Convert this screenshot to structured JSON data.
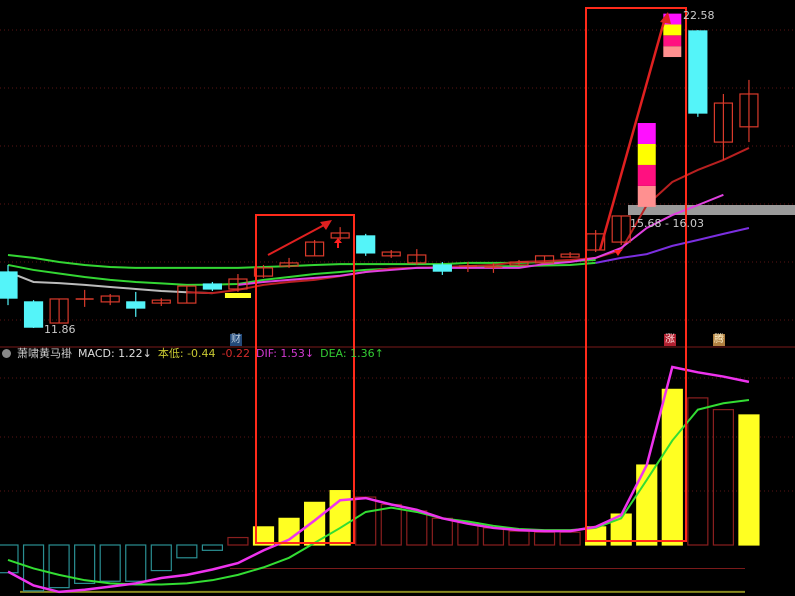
{
  "indicator_header": {
    "name": "萧啸黄马褂",
    "macd": "MACD: 1.22↓",
    "low_label": "本低: -0.44",
    "low2": "-0.22",
    "dif": "DIF: 1.53↓",
    "dea": "DEA: 1.36↑"
  },
  "annotations": {
    "high_price": "22.58",
    "low_price": "11.86",
    "range_label": "15.68 - 16.03",
    "marker_cai": "财",
    "marker_zhang": "涨",
    "marker_teng": "腾"
  },
  "colors": {
    "up": "#d93a2b",
    "down": "#54f4f9",
    "ma1": "#33d633",
    "ma2": "#33d633",
    "ma3": "#bbbbbb",
    "ma_red": "#b82020",
    "ma_magenta": "#e040e0",
    "ma_purple": "#7b2fe0",
    "dif": "#ee33ee",
    "dea": "#33dd33",
    "macd_fill": "#ffff22",
    "macd_hollow": "#8a1f1f",
    "macd_neg": "#2a8f93",
    "box": "#ff2a1a"
  },
  "chart_data": [
    {
      "type": "candlestick",
      "ylim": [
        11.86,
        22.58
      ],
      "candles": [
        {
          "o": 13.77,
          "c": 12.88,
          "h": 14.01,
          "l": 12.64
        },
        {
          "o": 12.75,
          "c": 11.89,
          "h": 12.81,
          "l": 11.86
        },
        {
          "o": 12.03,
          "c": 12.85,
          "h": 12.85,
          "l": 12.03
        },
        {
          "o": 12.85,
          "c": 12.85,
          "h": 13.16,
          "l": 12.58
        },
        {
          "o": 12.75,
          "c": 12.95,
          "h": 13.02,
          "l": 12.64
        },
        {
          "o": 12.75,
          "c": 12.54,
          "h": 13.09,
          "l": 12.24
        },
        {
          "o": 12.71,
          "c": 12.81,
          "h": 12.88,
          "l": 12.61
        },
        {
          "o": 12.71,
          "c": 13.29,
          "h": 13.29,
          "l": 12.71
        },
        {
          "o": 13.36,
          "c": 13.19,
          "h": 13.43,
          "l": 13.12
        },
        {
          "o": 13.19,
          "c": 13.53,
          "h": 13.7,
          "l": 13.09
        },
        {
          "o": 13.63,
          "c": 13.91,
          "h": 14.01,
          "l": 13.57
        },
        {
          "o": 13.97,
          "c": 14.08,
          "h": 14.25,
          "l": 13.91
        },
        {
          "o": 14.32,
          "c": 14.79,
          "h": 14.86,
          "l": 14.32
        },
        {
          "o": 14.93,
          "c": 15.1,
          "h": 15.3,
          "l": 14.86
        },
        {
          "o": 15.0,
          "c": 14.42,
          "h": 15.07,
          "l": 14.32
        },
        {
          "o": 14.32,
          "c": 14.45,
          "h": 14.52,
          "l": 14.25
        },
        {
          "o": 14.08,
          "c": 14.35,
          "h": 14.55,
          "l": 14.01
        },
        {
          "o": 14.01,
          "c": 13.8,
          "h": 14.11,
          "l": 13.67
        },
        {
          "o": 13.97,
          "c": 13.97,
          "h": 14.11,
          "l": 13.77
        },
        {
          "o": 13.94,
          "c": 13.94,
          "h": 14.08,
          "l": 13.74
        },
        {
          "o": 14.01,
          "c": 14.11,
          "h": 14.18,
          "l": 13.97
        },
        {
          "o": 14.08,
          "c": 14.32,
          "h": 14.32,
          "l": 14.08
        },
        {
          "o": 14.28,
          "c": 14.38,
          "h": 14.45,
          "l": 14.25
        },
        {
          "o": 14.52,
          "c": 15.07,
          "h": 15.2,
          "l": 14.45
        },
        {
          "o": 14.79,
          "c": 15.68,
          "h": 15.68,
          "l": 14.69
        },
        {
          "o": 15.99,
          "c": 18.85,
          "h": 18.85,
          "l": 15.99,
          "limit_up": true
        },
        {
          "o": 21.1,
          "c": 22.58,
          "h": 22.58,
          "l": 21.1,
          "limit_up": true
        },
        {
          "o": 21.99,
          "c": 19.19,
          "h": 22.02,
          "l": 19.06
        },
        {
          "o": 18.2,
          "c": 19.53,
          "h": 19.84,
          "l": 17.59
        },
        {
          "o": 18.72,
          "c": 19.84,
          "h": 20.32,
          "l": 18.2
        }
      ],
      "moving_averages": [
        {
          "key": "ma1",
          "start": 0,
          "values": [
            14.35,
            14.25,
            14.11,
            14.01,
            13.94,
            13.91,
            13.91,
            13.91,
            13.91,
            13.91,
            13.94,
            13.97,
            14.01,
            14.04,
            14.04,
            14.04,
            14.04,
            14.04,
            14.08,
            14.08,
            14.08,
            14.11,
            14.14,
            14.18
          ]
        },
        {
          "key": "ma2",
          "start": 0,
          "values": [
            14.01,
            13.84,
            13.72,
            13.6,
            13.5,
            13.43,
            13.38,
            13.33,
            13.34,
            13.36,
            13.5,
            13.6,
            13.7,
            13.77,
            13.84,
            13.88,
            13.91,
            13.93,
            13.94,
            13.96,
            13.97,
            13.99,
            14.01,
            14.08
          ]
        },
        {
          "key": "ma3",
          "start": 0,
          "values": [
            13.77,
            13.43,
            13.39,
            13.33,
            13.26,
            13.19,
            13.12,
            13.08,
            13.05
          ]
        },
        {
          "key": "ma_red",
          "start": 7,
          "values": [
            13.08,
            13.05,
            13.16,
            13.33,
            13.43,
            13.5,
            13.63,
            13.77,
            13.89,
            13.91,
            13.94,
            13.97,
            14.01,
            14.11,
            14.14,
            14.18,
            14.25,
            14.52,
            16.05,
            16.84,
            17.25,
            17.59,
            18.0
          ]
        },
        {
          "key": "ma_magenta",
          "start": 9,
          "values": [
            13.33,
            13.43,
            13.5,
            13.57,
            13.64,
            13.77,
            13.84,
            13.91,
            13.91,
            13.91,
            13.91,
            13.91,
            14.04,
            14.11,
            14.25,
            14.59,
            15.27,
            15.71,
            16.05,
            16.4
          ]
        },
        {
          "key": "ma_purple",
          "start": 23,
          "values": [
            14.08,
            14.25,
            14.38,
            14.66,
            14.86,
            15.07,
            15.27
          ]
        }
      ]
    },
    {
      "type": "bar+line",
      "title": "MACD",
      "macd": [
        {
          "v": -0.26
        },
        {
          "v": -0.43
        },
        {
          "v": -0.4
        },
        {
          "v": -0.36
        },
        {
          "v": -0.34
        },
        {
          "v": -0.34
        },
        {
          "v": -0.24
        },
        {
          "v": -0.12
        },
        {
          "v": -0.05
        },
        {
          "v": 0.07
        },
        {
          "v": 0.17,
          "filled": true
        },
        {
          "v": 0.25,
          "filled": true
        },
        {
          "v": 0.4,
          "filled": true
        },
        {
          "v": 0.51,
          "filled": true
        },
        {
          "v": 0.45
        },
        {
          "v": 0.38
        },
        {
          "v": 0.32
        },
        {
          "v": 0.25
        },
        {
          "v": 0.21
        },
        {
          "v": 0.16
        },
        {
          "v": 0.13
        },
        {
          "v": 0.12
        },
        {
          "v": 0.12
        },
        {
          "v": 0.17,
          "filled": true
        },
        {
          "v": 0.29,
          "filled": true
        },
        {
          "v": 0.75,
          "filled": true
        },
        {
          "v": 1.46,
          "filled": true
        },
        {
          "v": 1.38
        },
        {
          "v": 1.27
        },
        {
          "v": 1.22,
          "filled": true
        }
      ],
      "dif": [
        -0.25,
        -0.38,
        -0.44,
        -0.42,
        -0.39,
        -0.36,
        -0.31,
        -0.28,
        -0.23,
        -0.17,
        -0.05,
        0.05,
        0.23,
        0.42,
        0.44,
        0.38,
        0.33,
        0.25,
        0.2,
        0.16,
        0.14,
        0.13,
        0.13,
        0.17,
        0.28,
        0.75,
        1.67,
        1.62,
        1.58,
        1.53
      ],
      "dea": [
        -0.14,
        -0.22,
        -0.28,
        -0.33,
        -0.36,
        -0.37,
        -0.37,
        -0.36,
        -0.33,
        -0.28,
        -0.21,
        -0.12,
        0.02,
        0.16,
        0.31,
        0.35,
        0.31,
        0.25,
        0.22,
        0.18,
        0.15,
        0.14,
        0.14,
        0.16,
        0.25,
        0.61,
        0.98,
        1.27,
        1.33,
        1.36
      ],
      "reference_lines": [
        -0.22,
        -0.44
      ]
    }
  ]
}
